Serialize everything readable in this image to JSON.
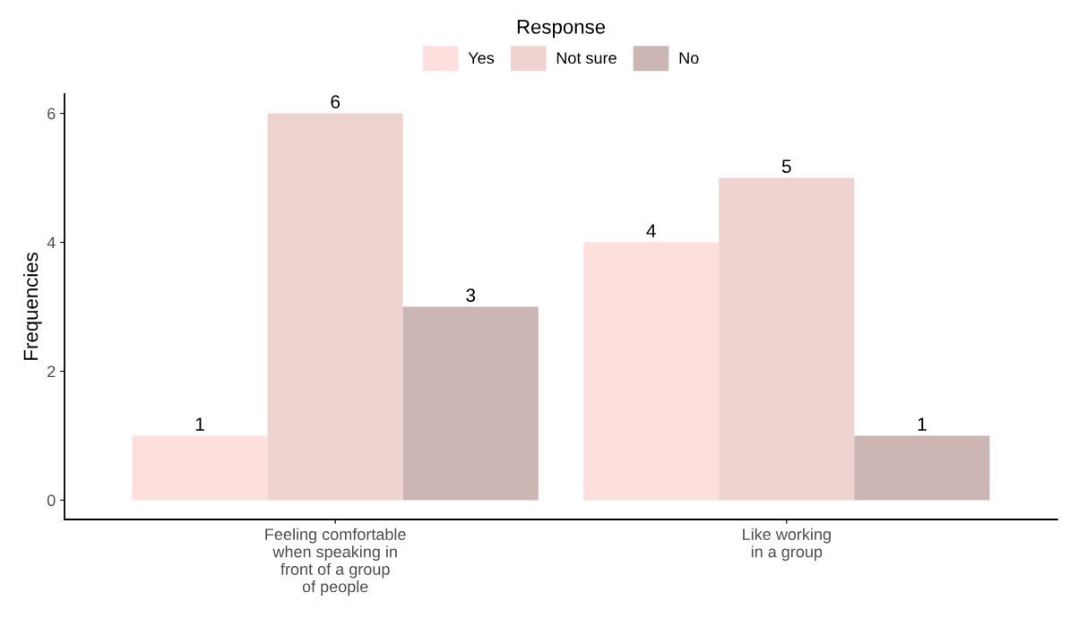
{
  "chart_data": {
    "type": "bar",
    "ylabel": "Frequencies",
    "legend_title": "Response",
    "legend": "top",
    "categories": [
      "Feeling comfortable\nwhen speaking in\nfront of a group\nof people",
      "Like working\nin a group"
    ],
    "series": [
      {
        "name": "Yes",
        "color": "#fde0dd",
        "values": [
          1,
          4
        ]
      },
      {
        "name": "Not sure",
        "color": "#efd3d0",
        "values": [
          6,
          5
        ]
      },
      {
        "name": "No",
        "color": "#cbb6b4",
        "values": [
          3,
          1
        ]
      }
    ],
    "ylim": [
      -0.3,
      6.3
    ],
    "yticks": [
      0,
      2,
      4,
      6
    ],
    "data_labels": true,
    "grid": false
  }
}
